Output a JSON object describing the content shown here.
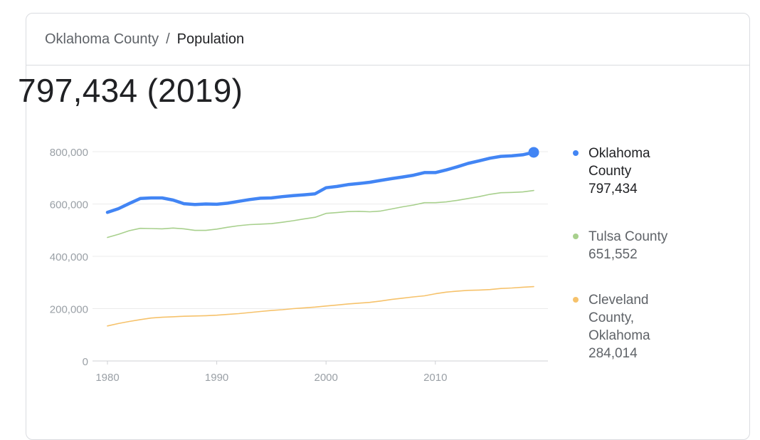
{
  "breadcrumb": {
    "parent": "Oklahoma County",
    "separator": "/",
    "current": "Population"
  },
  "headline": "797,434 (2019)",
  "colors": {
    "oklahoma": "#4285f4",
    "tulsa": "#a8d08d",
    "cleveland": "#f6c26b",
    "grid": "#ebebeb",
    "axis_text": "#9aa0a6"
  },
  "chart_data": {
    "type": "line",
    "title": "",
    "xlabel": "",
    "ylabel": "",
    "xlim": [
      1980,
      2019
    ],
    "ylim": [
      0,
      800000
    ],
    "x_ticks": [
      1980,
      1990,
      2000,
      2010
    ],
    "y_ticks": [
      0,
      200000,
      400000,
      600000,
      800000
    ],
    "y_tick_labels": [
      "0",
      "200,000",
      "400,000",
      "600,000",
      "800,000"
    ],
    "grid": "horizontal",
    "legend_position": "right",
    "x": [
      1980,
      1981,
      1982,
      1983,
      1984,
      1985,
      1986,
      1987,
      1988,
      1989,
      1990,
      1991,
      1992,
      1993,
      1994,
      1995,
      1996,
      1997,
      1998,
      1999,
      2000,
      2001,
      2002,
      2003,
      2004,
      2005,
      2006,
      2007,
      2008,
      2009,
      2010,
      2011,
      2012,
      2013,
      2014,
      2015,
      2016,
      2017,
      2018,
      2019
    ],
    "series": [
      {
        "name": "Oklahoma County",
        "color": "#4285f4",
        "emphasis": true,
        "values": [
          568000,
          582000,
          602000,
          621000,
          623000,
          623000,
          615000,
          601000,
          598000,
          600000,
          599000,
          603000,
          610000,
          617000,
          622000,
          623000,
          628000,
          632000,
          635000,
          639000,
          662000,
          667000,
          674000,
          678000,
          683000,
          690000,
          697000,
          703000,
          710000,
          720000,
          720000,
          730000,
          742000,
          755000,
          765000,
          775000,
          782000,
          784000,
          788000,
          797434
        ]
      },
      {
        "name": "Tulsa County",
        "color": "#a8d08d",
        "emphasis": false,
        "values": [
          472000,
          484000,
          498000,
          507000,
          506000,
          505000,
          508000,
          505000,
          499000,
          499000,
          504000,
          511000,
          517000,
          521000,
          523000,
          525000,
          530000,
          536000,
          543000,
          549000,
          564000,
          567000,
          571000,
          572000,
          570000,
          573000,
          581000,
          589000,
          596000,
          605000,
          605000,
          608000,
          614000,
          621000,
          628000,
          637000,
          643000,
          644000,
          646000,
          651552
        ]
      },
      {
        "name": "Cleveland County, Oklahoma",
        "color": "#f6c26b",
        "emphasis": false,
        "values": [
          134000,
          143000,
          151000,
          158000,
          164000,
          167000,
          169000,
          171000,
          172000,
          173000,
          175000,
          178000,
          181000,
          185000,
          189000,
          193000,
          196000,
          200000,
          203000,
          206000,
          210000,
          214000,
          218000,
          221000,
          224000,
          229000,
          235000,
          240000,
          245000,
          249000,
          257000,
          263000,
          267000,
          270000,
          271000,
          273000,
          277000,
          279000,
          282000,
          284014
        ]
      }
    ]
  },
  "legend": {
    "items": [
      {
        "lines": [
          "Oklahoma",
          "County",
          "797,434"
        ],
        "color": "#4285f4",
        "active": true
      },
      {
        "lines": [
          "Tulsa County",
          "651,552"
        ],
        "color": "#a8d08d",
        "active": false
      },
      {
        "lines": [
          "Cleveland",
          "County,",
          "Oklahoma",
          "284,014"
        ],
        "color": "#f6c26b",
        "active": false
      }
    ]
  }
}
